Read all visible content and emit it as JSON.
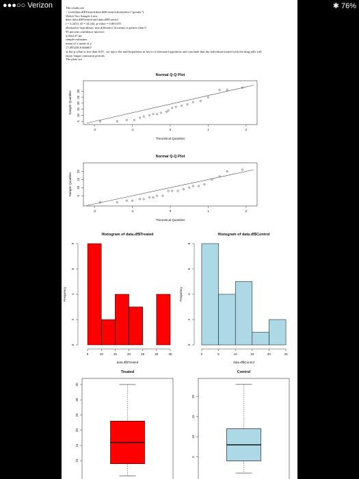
{
  "status_bar": {
    "carrier": "●●●○○ Verizon",
    "battery": "✱ 76%"
  },
  "output_lines": [
    "The results are",
    "> t.test(data.df$Treated,data.df$Control,alternative=\"greater\")",
    "   Welch Two Sample t-test",
    "data:  data.df$Treated and data.df$Control",
    "t = 3.2433, df = 34.242, p-value = 0.001319",
    "alternative hypothesis: true difference in means is greater than 0",
    "95 percent confidence interval:",
    " 4.033147     Inf",
    "sample estimates:",
    "mean of x mean of y",
    "17.095238  8.666667",
    "as the p value is less than 0.05 , we reject the null hypothesis in favor of alternate hypothesis and conclude that the individual treated with the drug pills will",
    "enjoy longer remission periods",
    "The plots are"
  ],
  "chart_data": [
    {
      "type": "scatter",
      "title": "Normal Q-Q Plot",
      "xlabel": "Theoretical Quantiles",
      "ylabel": "Sample Quantiles",
      "xlim": [
        -2.2,
        2.2
      ],
      "ylim": [
        4,
        37
      ],
      "xticks": [
        -2,
        -1,
        0,
        1,
        2
      ],
      "yticks": [
        5,
        10,
        15,
        20,
        25,
        30
      ],
      "points": [
        [
          -1.85,
          5
        ],
        [
          -1.4,
          5
        ],
        [
          -1.15,
          6
        ],
        [
          -0.95,
          6
        ],
        [
          -0.8,
          8
        ],
        [
          -0.7,
          9
        ],
        [
          -0.55,
          10
        ],
        [
          -0.45,
          11
        ],
        [
          -0.35,
          11
        ],
        [
          -0.25,
          12
        ],
        [
          -0.1,
          13
        ],
        [
          -0.05,
          14
        ],
        [
          0.05,
          16
        ],
        [
          0.15,
          17
        ],
        [
          0.3,
          18
        ],
        [
          0.45,
          19
        ],
        [
          0.6,
          21
        ],
        [
          0.8,
          22
        ],
        [
          1.0,
          25
        ],
        [
          1.3,
          31
        ],
        [
          1.5,
          31
        ],
        [
          1.9,
          33
        ]
      ],
      "qqline": [
        [
          -2.2,
          3.5
        ],
        [
          2.2,
          35
        ]
      ]
    },
    {
      "type": "scatter",
      "title": "Normal Q-Q Plot",
      "xlabel": "Theoretical Quantiles",
      "ylabel": "Sample Quantiles",
      "xlim": [
        -2.2,
        2.2
      ],
      "ylim": [
        0,
        24
      ],
      "xticks": [
        -2,
        -1,
        0,
        1,
        2
      ],
      "yticks": [
        5,
        10,
        15,
        20
      ],
      "points": [
        [
          -1.85,
          1
        ],
        [
          -1.4,
          1
        ],
        [
          -1.15,
          2
        ],
        [
          -1.0,
          2
        ],
        [
          -0.8,
          3
        ],
        [
          -0.7,
          3
        ],
        [
          -0.55,
          4
        ],
        [
          -0.45,
          4
        ],
        [
          -0.35,
          5
        ],
        [
          -0.2,
          5
        ],
        [
          -0.05,
          8
        ],
        [
          0.05,
          8
        ],
        [
          0.2,
          8
        ],
        [
          0.35,
          9
        ],
        [
          0.5,
          10
        ],
        [
          0.6,
          11
        ],
        [
          0.75,
          11
        ],
        [
          0.9,
          12
        ],
        [
          1.1,
          15
        ],
        [
          1.3,
          17
        ],
        [
          1.5,
          20
        ],
        [
          1.9,
          21
        ]
      ],
      "qqline": [
        [
          -2.2,
          -1
        ],
        [
          2.2,
          21
        ]
      ]
    },
    {
      "type": "bar",
      "title": "Histogram of data.df$Treated",
      "xlabel": "data.df$Treated",
      "ylabel": "Frequency",
      "fill": "#ff0000",
      "bins": [
        [
          5,
          10,
          8
        ],
        [
          10,
          15,
          2
        ],
        [
          15,
          20,
          4
        ],
        [
          20,
          25,
          3
        ],
        [
          25,
          30,
          0
        ],
        [
          30,
          35,
          4
        ]
      ],
      "xlim": [
        3,
        36
      ],
      "ylim": [
        0,
        8
      ],
      "xticks": [
        5,
        10,
        15,
        20,
        25,
        30,
        35
      ],
      "yticks": [
        0,
        2,
        4,
        6,
        8
      ]
    },
    {
      "type": "bar",
      "title": "Histogram of data.df$Control",
      "xlabel": "data.df$Control",
      "ylabel": "Frequency",
      "fill": "#add8e6",
      "bins": [
        [
          0,
          5,
          8
        ],
        [
          5,
          10,
          4
        ],
        [
          10,
          15,
          5
        ],
        [
          15,
          20,
          1
        ],
        [
          20,
          25,
          2
        ]
      ],
      "xlim": [
        -1,
        26
      ],
      "ylim": [
        0,
        8
      ],
      "xticks": [
        0,
        5,
        10,
        15,
        20,
        25
      ],
      "yticks": [
        0,
        2,
        4,
        6,
        8
      ]
    },
    {
      "type": "box",
      "title": "Treated",
      "fill": "#ff0000",
      "min": 5,
      "q1": 9,
      "median": 16,
      "q3": 23,
      "max": 35,
      "ylim": [
        4,
        37
      ],
      "yticks": [
        10,
        15,
        20,
        25,
        30,
        35
      ]
    },
    {
      "type": "box",
      "title": "Control",
      "fill": "#add8e6",
      "min": 1,
      "q1": 4,
      "median": 8,
      "q3": 12,
      "max": 23,
      "ylim": [
        -0.5,
        24.5
      ],
      "yticks": [
        5,
        10,
        15,
        20
      ]
    }
  ]
}
